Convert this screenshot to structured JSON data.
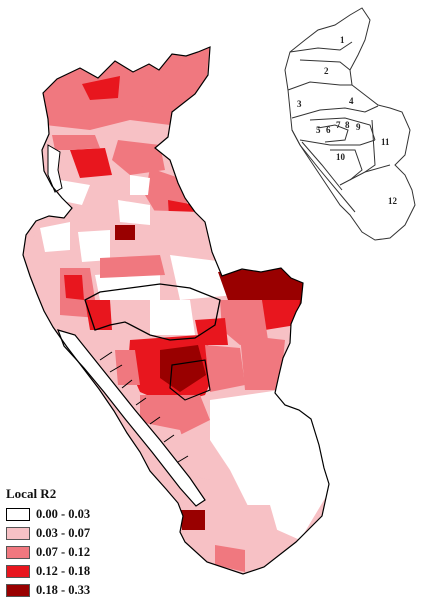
{
  "map": {
    "colors": {
      "outline": "#000000",
      "river": "#ffffff",
      "inset_line": "#333333"
    }
  },
  "inset": {
    "district_labels": [
      "1",
      "2",
      "3",
      "4",
      "5",
      "6",
      "7",
      "8",
      "9",
      "10",
      "11",
      "12"
    ]
  },
  "legend": {
    "title": "Local R2",
    "classes": [
      {
        "label": "0.00 - 0.03",
        "color": "#ffffff"
      },
      {
        "label": "0.03 - 0.07",
        "color": "#f7c1c5"
      },
      {
        "label": "0.07 - 0.12",
        "color": "#f0787f"
      },
      {
        "label": "0.12 - 0.18",
        "color": "#e8161e"
      },
      {
        "label": "0.18 - 0.33",
        "color": "#990000"
      }
    ]
  }
}
